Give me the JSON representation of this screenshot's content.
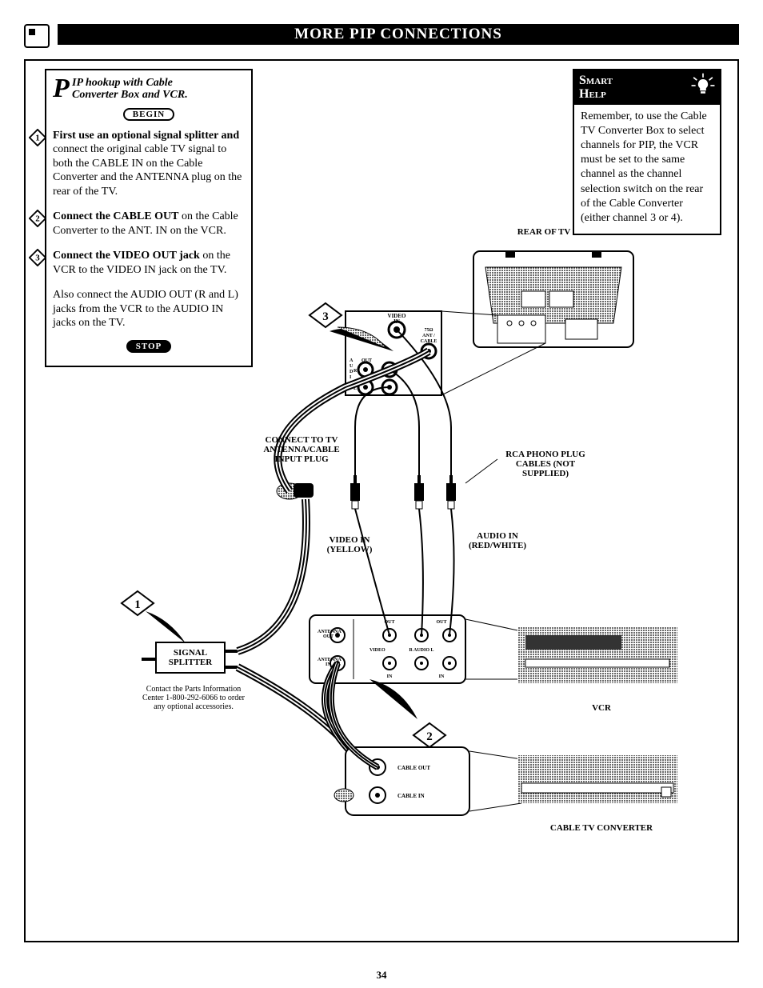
{
  "title": "MORE PIP CONNECTIONS",
  "page_number": "34",
  "instructions": {
    "heading_line1": "IP hookup with Cable",
    "heading_line2": "Converter Box and VCR.",
    "dropcap": "P",
    "begin_label": "BEGIN",
    "stop_label": "STOP",
    "steps": [
      {
        "n": "1",
        "html": "<b>First use an optional signal splitter and</b> connect the original cable TV signal to both the CABLE IN on the Cable Converter and the ANTENNA plug on the rear of the TV."
      },
      {
        "n": "2",
        "html": "<b>Connect the CABLE OUT</b> on the Cable Converter to the ANT. IN on the VCR."
      },
      {
        "n": "3",
        "html": "<b>Connect the VIDEO OUT jack</b> on the VCR to the VIDEO IN jack on the TV."
      }
    ],
    "also_text": "Also connect the AUDIO OUT (R and L) jacks from the VCR to the AUDIO IN jacks on the TV."
  },
  "smarthelp": {
    "title1": "Smart",
    "title2": "Help",
    "body": "Remember, to use the Cable TV Converter Box to select channels for PIP, the VCR must be set to the same channel as the channel selection switch on the rear of the Cable Converter (either channel 3 or 4)."
  },
  "diagram": {
    "rear_of_tv": "REAR OF TV",
    "connect_to_tv": "CONNECT TO TV ANTENNA/CABLE INPUT PLUG",
    "rca_note": "RCA PHONO PLUG CABLES (NOT SUPPLIED)",
    "video_in": "VIDEO IN (YELLOW)",
    "audio_in": "AUDIO IN (RED/WHITE)",
    "signal_splitter": "SIGNAL SPLITTER",
    "splitter_note": "Contact the Parts Information Center 1-800-292-6066 to order any optional accessories.",
    "vcr": "VCR",
    "cable_conv": "CABLE TV CONVERTER",
    "tv_port_video_in": "VIDEO IN",
    "tv_port_ant": "75Ω ANT / CABLE",
    "tv_port_audio": "AUDIO",
    "tv_port_out": "OUT",
    "tv_port_in": "IN",
    "tv_port_r": "R",
    "tv_port_l": "L",
    "vcr_antenna_out": "ANTENNA OUT",
    "vcr_antenna_in": "ANTENNA IN",
    "vcr_video": "VIDEO",
    "vcr_audio_r": "R  AUDIO  L",
    "vcr_out": "OUT",
    "vcr_in": "IN",
    "cable_out": "CABLE OUT",
    "cable_in": "CABLE IN",
    "colors": {
      "black": "#000000",
      "white": "#ffffff",
      "halftone": "#9a9a9a"
    }
  }
}
